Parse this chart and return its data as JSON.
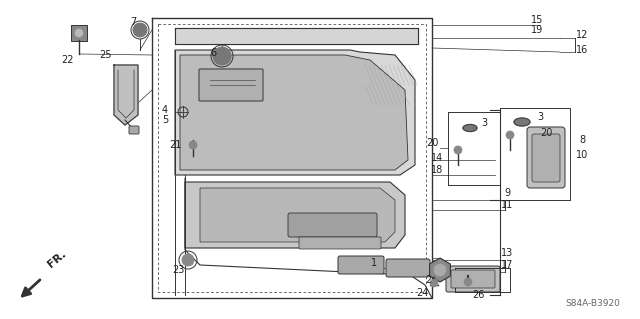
{
  "bg_color": "#ffffff",
  "diagram_code": "S84A-B3920",
  "line_color": "#333333",
  "text_color": "#222222",
  "gray_fill": "#c8c8c8",
  "light_gray": "#e0e0e0",
  "dark_gray": "#888888"
}
